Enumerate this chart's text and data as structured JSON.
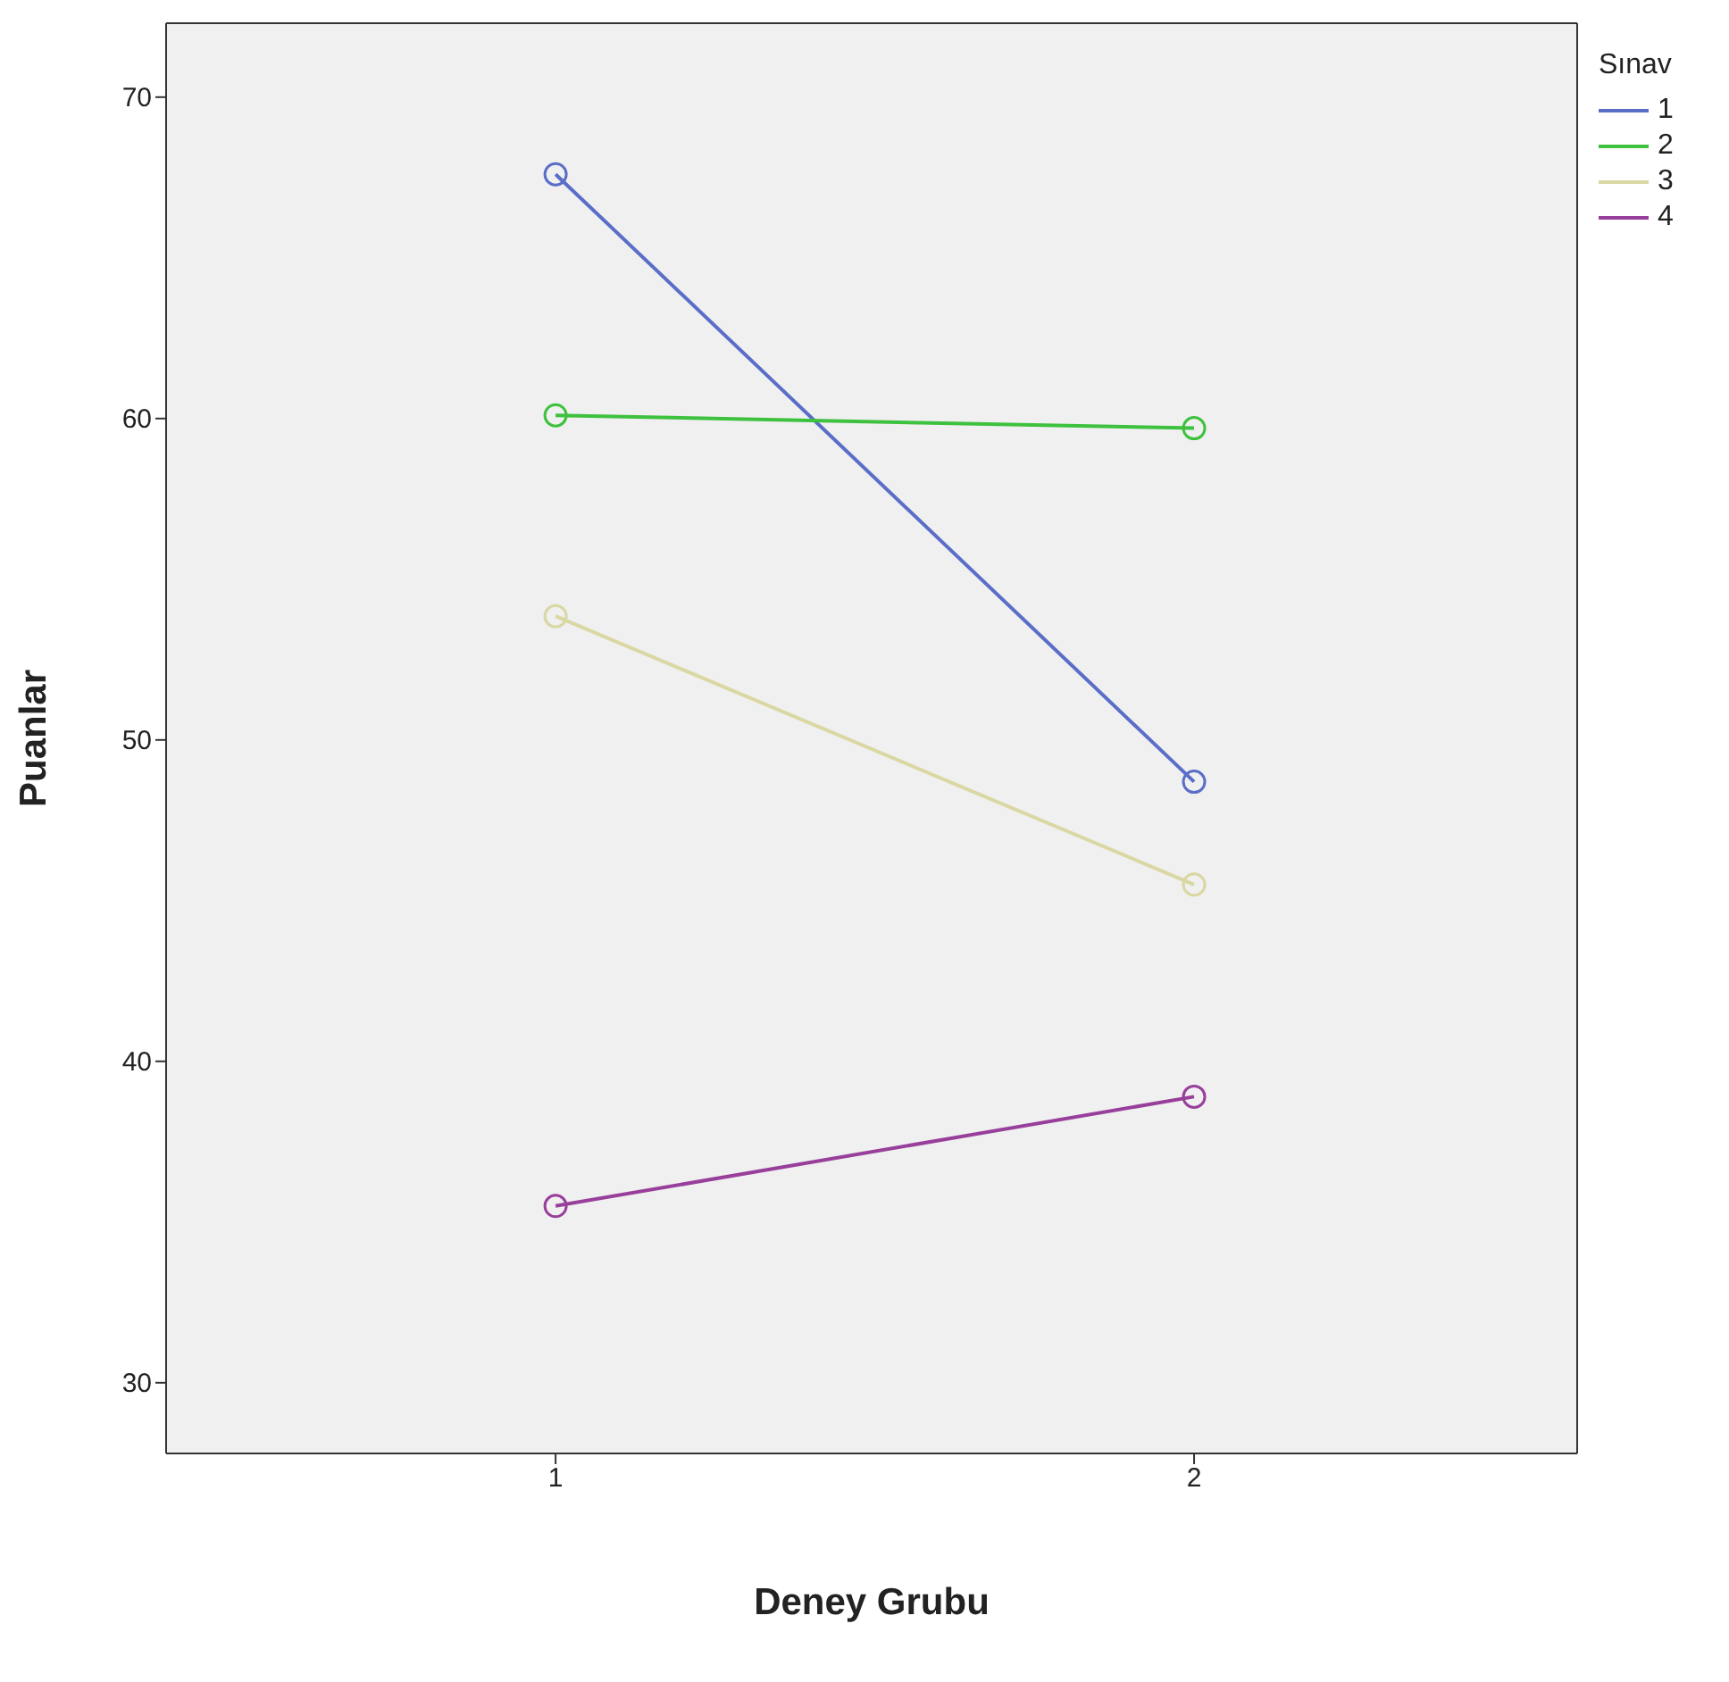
{
  "chart_data": {
    "type": "line",
    "xlabel": "Deney Grubu",
    "ylabel": "Puanlar",
    "legend_title": "Sınav",
    "x": [
      1,
      2
    ],
    "xlim": [
      0.39,
      2.6
    ],
    "xticks": [
      1,
      2
    ],
    "ylim": [
      27.8,
      72.3
    ],
    "yticks": [
      30,
      40,
      50,
      60,
      70
    ],
    "grid": false,
    "legend": "top right",
    "marker": "circle",
    "line_style": "solid",
    "series": [
      {
        "name": "1",
        "color": "#5a6ec8",
        "values": [
          67.6,
          48.7
        ]
      },
      {
        "name": "2",
        "color": "#3ec13e",
        "values": [
          60.1,
          59.7
        ]
      },
      {
        "name": "3",
        "color": "#d9d7a2",
        "values": [
          53.85,
          45.5
        ]
      },
      {
        "name": "4",
        "color": "#983f9b",
        "values": [
          35.5,
          38.9
        ]
      }
    ]
  }
}
